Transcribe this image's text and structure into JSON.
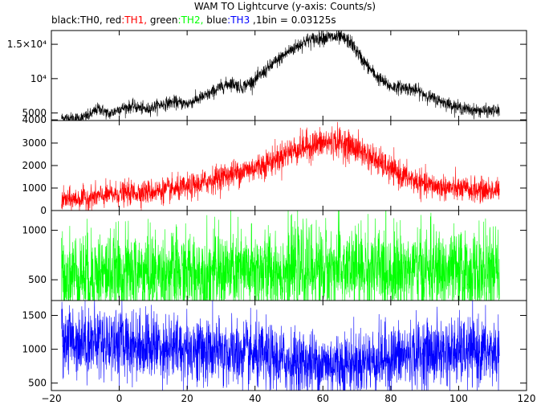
{
  "chart_data": {
    "type": "line",
    "title": "WAM TO Lightcurve (y-axis: Counts/s)",
    "subtitle_parts": [
      {
        "text": "black",
        "color": "#000000"
      },
      {
        "text": ":TH0, ",
        "color": "#000000"
      },
      {
        "text": "red",
        "color": "#000000"
      },
      {
        "text": ":TH1, ",
        "color": "#ff0000"
      },
      {
        "text": "green",
        "color": "#000000"
      },
      {
        "text": ":TH2, ",
        "color": "#00ff00"
      },
      {
        "text": "blue",
        "color": "#000000"
      },
      {
        "text": ":TH3",
        "color": "#0000ff"
      },
      {
        "text": " ,1bin = 0.03125s",
        "color": "#000000"
      }
    ],
    "x_ticks": [
      "−20",
      "0",
      "20",
      "40",
      "60",
      "80",
      "100",
      "120"
    ],
    "x_tick_values": [
      -20,
      0,
      20,
      40,
      60,
      80,
      100,
      120
    ],
    "xlim": [
      -20,
      120
    ],
    "x_range": [
      -17,
      112
    ],
    "panels": [
      {
        "name": "TH0",
        "color": "#000000",
        "ylim": [
          3900,
          17000
        ],
        "y_ticks": [
          {
            "value": 4000,
            "label": "4000"
          },
          {
            "value": 5000,
            "label": "5000"
          },
          {
            "value": 10000,
            "label": "10⁴"
          },
          {
            "value": 15000,
            "label": "1.5×10⁴"
          }
        ],
        "noise": 550,
        "profile": [
          [
            -17,
            4300
          ],
          [
            -12,
            4200
          ],
          [
            -9,
            4600
          ],
          [
            -6,
            5700
          ],
          [
            -3,
            4800
          ],
          [
            0,
            5600
          ],
          [
            4,
            6000
          ],
          [
            8,
            5500
          ],
          [
            12,
            6200
          ],
          [
            16,
            6600
          ],
          [
            20,
            6300
          ],
          [
            22,
            6800
          ],
          [
            26,
            7600
          ],
          [
            30,
            8800
          ],
          [
            33,
            9400
          ],
          [
            36,
            8700
          ],
          [
            40,
            9800
          ],
          [
            45,
            12000
          ],
          [
            50,
            14000
          ],
          [
            55,
            15500
          ],
          [
            60,
            16000
          ],
          [
            65,
            16000
          ],
          [
            68,
            15400
          ],
          [
            72,
            12500
          ],
          [
            76,
            10200
          ],
          [
            80,
            8800
          ],
          [
            84,
            8700
          ],
          [
            88,
            8200
          ],
          [
            92,
            7200
          ],
          [
            96,
            6500
          ],
          [
            100,
            5800
          ],
          [
            104,
            5400
          ],
          [
            108,
            5300
          ],
          [
            112,
            5300
          ]
        ]
      },
      {
        "name": "TH1",
        "color": "#ff0000",
        "ylim": [
          0,
          4000
        ],
        "y_ticks": [
          {
            "value": 0,
            "label": "0"
          },
          {
            "value": 1000,
            "label": "1000"
          },
          {
            "value": 2000,
            "label": "2000"
          },
          {
            "value": 3000,
            "label": "3000"
          }
        ],
        "noise": 340,
        "profile": [
          [
            -17,
            450
          ],
          [
            -10,
            550
          ],
          [
            0,
            750
          ],
          [
            10,
            850
          ],
          [
            20,
            1000
          ],
          [
            30,
            1500
          ],
          [
            40,
            1900
          ],
          [
            45,
            2200
          ],
          [
            50,
            2600
          ],
          [
            55,
            2850
          ],
          [
            60,
            3000
          ],
          [
            65,
            3050
          ],
          [
            70,
            2750
          ],
          [
            75,
            2300
          ],
          [
            80,
            1800
          ],
          [
            85,
            1450
          ],
          [
            90,
            1150
          ],
          [
            95,
            1050
          ],
          [
            100,
            950
          ],
          [
            106,
            900
          ],
          [
            112,
            900
          ]
        ]
      },
      {
        "name": "TH2",
        "color": "#00ff00",
        "ylim": [
          290,
          1200
        ],
        "y_ticks": [
          {
            "value": 500,
            "label": "500"
          },
          {
            "value": 1000,
            "label": "1000"
          }
        ],
        "noise": 220,
        "profile": [
          [
            -17,
            560
          ],
          [
            20,
            560
          ],
          [
            40,
            580
          ],
          [
            60,
            610
          ],
          [
            80,
            600
          ],
          [
            100,
            570
          ],
          [
            112,
            560
          ]
        ]
      },
      {
        "name": "TH3",
        "color": "#0000ff",
        "ylim": [
          390,
          1720
        ],
        "y_ticks": [
          {
            "value": 500,
            "label": "500"
          },
          {
            "value": 1000,
            "label": "1000"
          },
          {
            "value": 1500,
            "label": "1500"
          }
        ],
        "noise": 260,
        "profile": [
          [
            -17,
            1150
          ],
          [
            0,
            1100
          ],
          [
            20,
            1000
          ],
          [
            40,
            900
          ],
          [
            50,
            820
          ],
          [
            60,
            780
          ],
          [
            70,
            800
          ],
          [
            80,
            880
          ],
          [
            90,
            940
          ],
          [
            100,
            960
          ],
          [
            112,
            950
          ]
        ]
      }
    ]
  }
}
